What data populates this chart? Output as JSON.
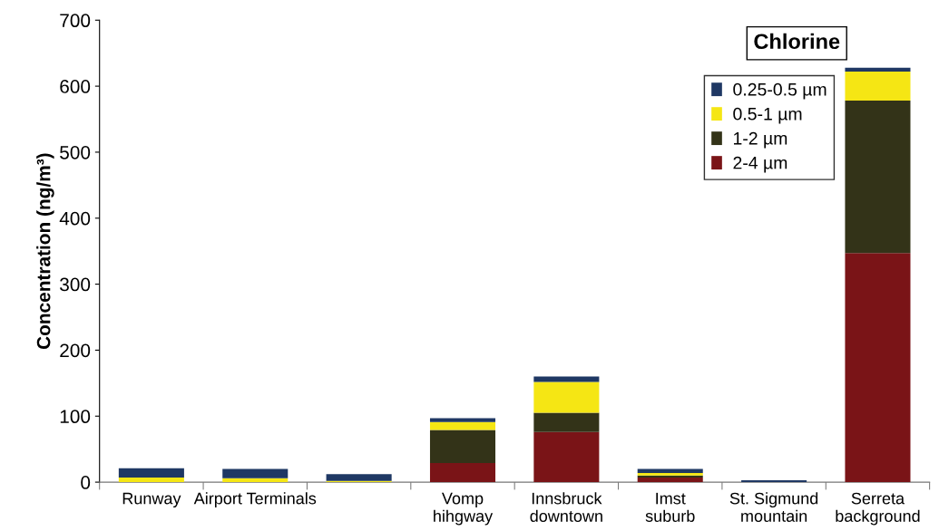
{
  "chart_data": {
    "type": "bar",
    "title": "Chlorine",
    "ylabel": "Concentration (ng/m³)",
    "categories": [
      "Runway",
      "Airport Terminals",
      null,
      "Vomp\nhihgway",
      "Innsbruck\ndowntown",
      "Imst\nsuburb",
      "St. Sigmund\nmountain",
      "Serreta\nbackground"
    ],
    "stacked": true,
    "series": [
      {
        "name": "2-4 µm",
        "color": "#7a1417",
        "values": [
          0,
          0,
          0,
          29,
          76,
          7,
          0,
          347
        ]
      },
      {
        "name": "1-2 µm",
        "color": "#333318",
        "values": [
          null,
          null,
          null,
          50,
          29,
          3,
          0,
          231
        ]
      },
      {
        "name": "0.5-1 µm",
        "color": "#f5e614",
        "values": [
          7,
          6,
          2,
          12,
          47,
          4,
          0,
          44
        ]
      },
      {
        "name": "0.25-0.5 µm",
        "color": "#1f3864",
        "values": [
          14,
          14,
          10,
          6,
          8,
          6,
          3,
          6
        ]
      }
    ],
    "ylim": [
      0,
      700
    ],
    "yticks": [
      0,
      100,
      200,
      300,
      400,
      500,
      600,
      700
    ],
    "grid": false,
    "legend": "top right"
  }
}
